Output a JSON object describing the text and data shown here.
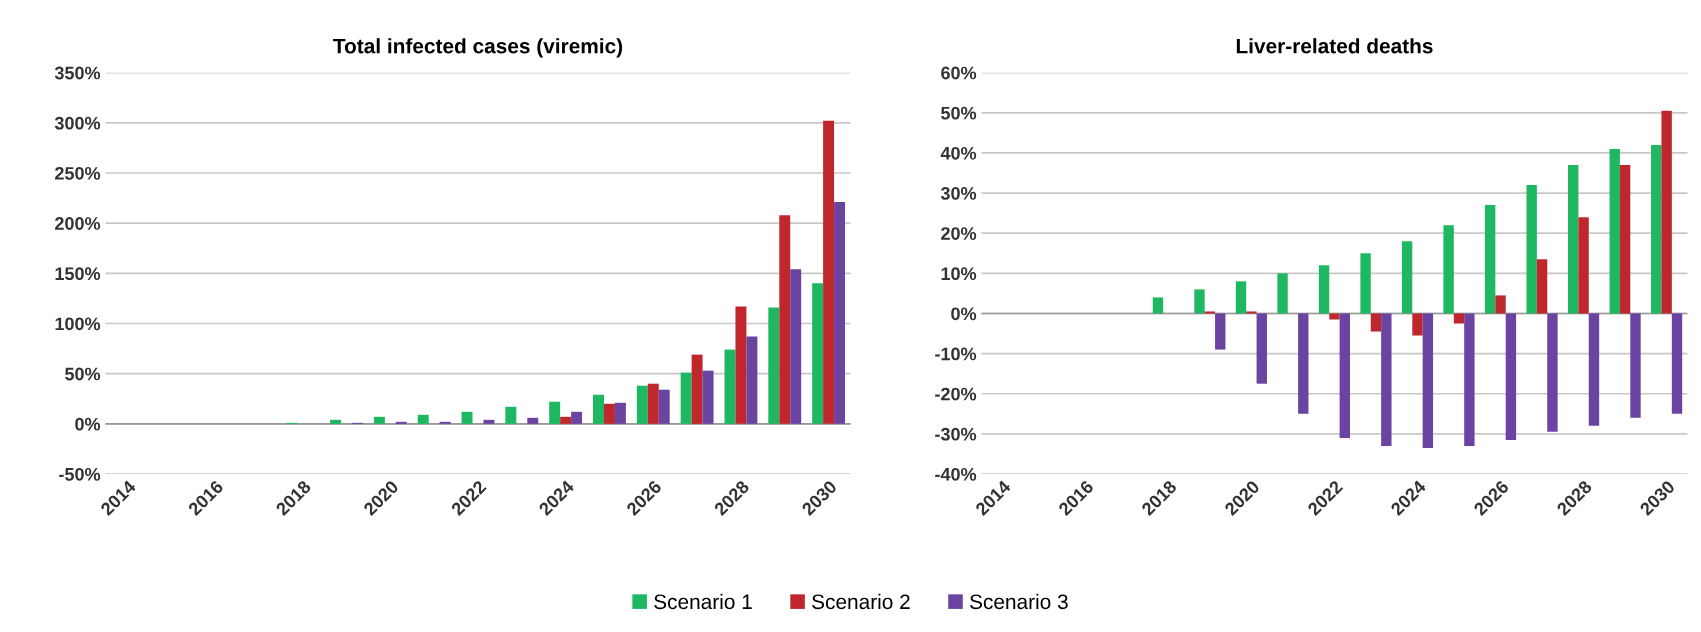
{
  "chart_data": [
    {
      "type": "bar",
      "title": "Total infected cases (viremic)",
      "categories": [
        "2014",
        null,
        "2016",
        null,
        "2018",
        null,
        "2020",
        null,
        "2022",
        null,
        "2024",
        null,
        "2026",
        null,
        "2028",
        null,
        "2030"
      ],
      "series": [
        {
          "name": "Scenario 1",
          "color": "#1db861",
          "values": [
            0,
            0,
            0,
            0,
            1,
            4,
            7,
            9,
            12,
            17,
            22,
            29,
            38,
            51,
            74,
            116,
            140
          ]
        },
        {
          "name": "Scenario 2",
          "color": "#c0272d",
          "values": [
            0,
            0,
            0,
            0,
            0,
            0,
            0,
            0,
            0,
            0,
            7,
            20,
            40,
            69,
            117,
            208,
            302
          ]
        },
        {
          "name": "Scenario 3",
          "color": "#6a44a0",
          "values": [
            0,
            0,
            0,
            0,
            0,
            1,
            2,
            2,
            4,
            6,
            12,
            21,
            34,
            53,
            87,
            154,
            221
          ]
        }
      ],
      "ylim": [
        -50,
        350
      ],
      "yticks": [
        {
          "value": -50,
          "label": "-50%"
        },
        {
          "value": 0,
          "label": "0%"
        },
        {
          "value": 50,
          "label": "50%"
        },
        {
          "value": 100,
          "label": "100%"
        },
        {
          "value": 150,
          "label": "150%"
        },
        {
          "value": 200,
          "label": "200%"
        },
        {
          "value": 250,
          "label": "250%"
        },
        {
          "value": 300,
          "label": "300%"
        },
        {
          "value": 350,
          "label": "350%"
        }
      ],
      "grid": "y",
      "legend": "bottom"
    },
    {
      "type": "bar",
      "title": "Liver-related deaths",
      "categories": [
        "2014",
        null,
        "2016",
        null,
        "2018",
        null,
        "2020",
        null,
        "2022",
        null,
        "2024",
        null,
        "2026",
        null,
        "2028",
        null,
        "2030"
      ],
      "series": [
        {
          "color": "#1db861",
          "values": [
            0,
            0,
            0,
            0,
            4,
            6,
            8,
            10,
            12,
            15,
            18,
            22,
            27,
            32,
            37,
            41,
            42
          ]
        },
        {
          "color": "#c0272d",
          "values": [
            0,
            0,
            0,
            0,
            0,
            0.5,
            0.5,
            0,
            -1.5,
            -4.5,
            -5.5,
            -2.5,
            4.5,
            13.5,
            24,
            37,
            50.5
          ]
        },
        {
          "color": "#6a44a0",
          "values": [
            0,
            0,
            0,
            0,
            0,
            -9,
            -17.5,
            -25,
            -31,
            -33,
            -33.5,
            -33,
            -31.5,
            -29.5,
            -28,
            -26,
            -25
          ]
        }
      ],
      "ylim": [
        -40,
        60
      ],
      "yticks": [
        {
          "value": -40,
          "label": "-40%"
        },
        {
          "value": -30,
          "label": "-30%"
        },
        {
          "value": -20,
          "label": "-20%"
        },
        {
          "value": -10,
          "label": "-10%"
        },
        {
          "value": 0,
          "label": "0%"
        },
        {
          "value": 10,
          "label": "10%"
        },
        {
          "value": 20,
          "label": "20%"
        },
        {
          "value": 30,
          "label": "30%"
        },
        {
          "value": 40,
          "label": "40%"
        },
        {
          "value": 50,
          "label": "50%"
        },
        {
          "value": 60,
          "label": "60%"
        }
      ],
      "grid": "y"
    }
  ]
}
